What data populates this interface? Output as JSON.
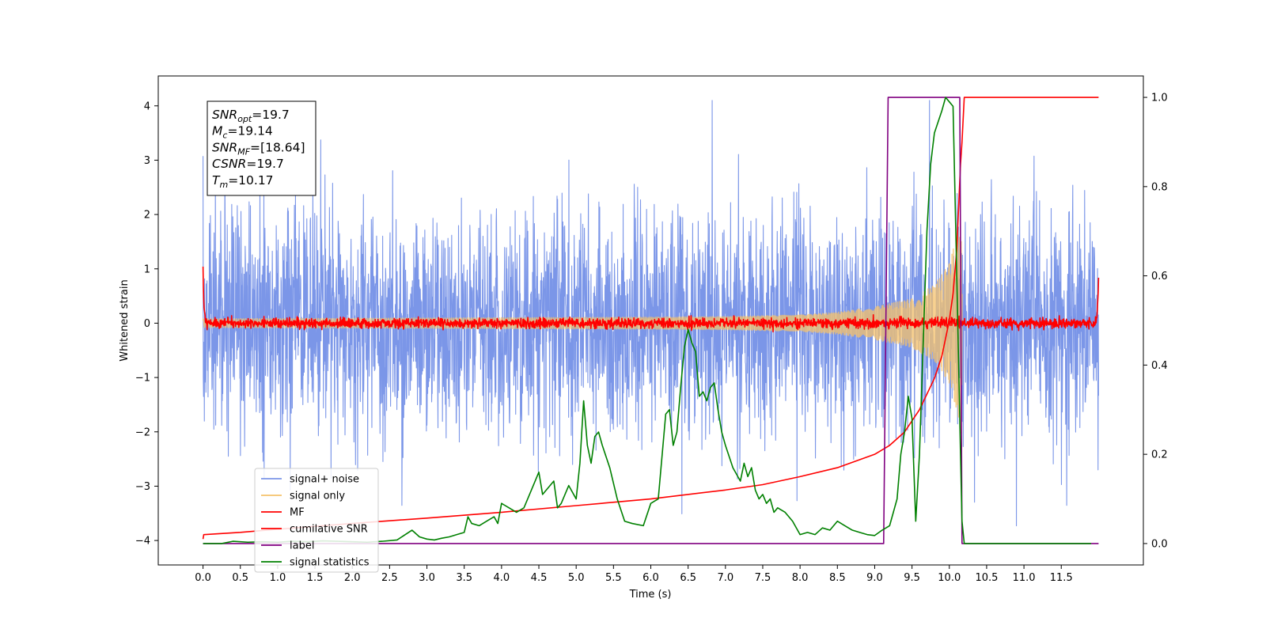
{
  "chart_data": {
    "type": "line",
    "xlabel": "Time (s)",
    "ylabel": "Whitened strain",
    "xlim": [
      -0.6,
      12.6
    ],
    "ylim": [
      -4.45,
      4.55
    ],
    "y2lim": [
      -0.048,
      1.048
    ],
    "x_ticks": [
      0.0,
      0.5,
      1.0,
      1.5,
      2.0,
      2.5,
      3.0,
      3.5,
      4.0,
      4.5,
      5.0,
      5.5,
      6.0,
      6.5,
      7.0,
      7.5,
      8.0,
      8.5,
      9.0,
      9.5,
      10.0,
      10.5,
      11.0,
      11.5
    ],
    "x_tick_labels": [
      "0.0",
      "0.5",
      "1.0",
      "1.5",
      "2.0",
      "2.5",
      "3.0",
      "3.5",
      "4.0",
      "4.5",
      "5.0",
      "5.5",
      "6.0",
      "6.5",
      "7.0",
      "7.5",
      "8.0",
      "8.5",
      "9.0",
      "9.5",
      "10.0",
      "10.5",
      "11.0",
      "11.5"
    ],
    "y_ticks": [
      -4,
      -3,
      -2,
      -1,
      0,
      1,
      2,
      3,
      4
    ],
    "y_tick_labels": [
      "−4",
      "−3",
      "−2",
      "−1",
      "0",
      "1",
      "2",
      "3",
      "4"
    ],
    "y2_ticks": [
      0.0,
      0.2,
      0.4,
      0.6,
      0.8,
      1.0
    ],
    "y2_tick_labels": [
      "0.0",
      "0.2",
      "0.4",
      "0.6",
      "0.8",
      "1.0"
    ],
    "grid": false,
    "legend_position": "lower-left",
    "annotation": {
      "lines": [
        {
          "sym": "SNR",
          "sub": "opt",
          "value": "=19.7"
        },
        {
          "sym": "M",
          "sub": "c",
          "value": "=19.14"
        },
        {
          "sym": "SNR",
          "sub": "MF",
          "value": "=[18.64]"
        },
        {
          "sym": "CSNR",
          "sub": "",
          "value": "=19.7"
        },
        {
          "sym": "T",
          "sub": "m",
          "value": "=10.17"
        }
      ]
    },
    "series": [
      {
        "name": "signal+ noise",
        "axis": "left",
        "color": "#7b96e8",
        "kind": "noise",
        "x_range": [
          0.0,
          12.0
        ],
        "std": 1.05,
        "y_range": [
          -3.9,
          4.1
        ]
      },
      {
        "name": "signal only",
        "axis": "left",
        "color": "#f5c26b",
        "kind": "chirp",
        "x_range": [
          0.0,
          10.17
        ],
        "envelope": {
          "x": [
            0.0,
            2.0,
            4.0,
            6.0,
            7.0,
            8.0,
            8.5,
            9.0,
            9.5,
            9.8,
            10.0,
            10.1,
            10.17
          ],
          "amp": [
            0.08,
            0.09,
            0.1,
            0.11,
            0.12,
            0.15,
            0.2,
            0.3,
            0.45,
            0.7,
            1.1,
            1.6,
            2.3
          ]
        }
      },
      {
        "name": "MF",
        "axis": "left",
        "color": "#ff0000",
        "kind": "mf",
        "x_range": [
          0.0,
          12.0
        ],
        "noise_std": 0.045,
        "start_value": 1.0,
        "end_value": 0.9
      },
      {
        "name": "cumilative SNR",
        "axis": "right",
        "color": "#ff0000",
        "kind": "line",
        "x": [
          0.0,
          0.01,
          0.5,
          1.0,
          2.0,
          3.0,
          4.0,
          5.0,
          6.0,
          7.0,
          7.5,
          8.0,
          8.5,
          9.0,
          9.2,
          9.4,
          9.6,
          9.8,
          9.9,
          10.0,
          10.05,
          10.1,
          10.15,
          10.17,
          10.2,
          12.0
        ],
        "y": [
          0.01,
          0.02,
          0.025,
          0.032,
          0.045,
          0.057,
          0.07,
          0.085,
          0.1,
          0.12,
          0.132,
          0.15,
          0.17,
          0.2,
          0.22,
          0.25,
          0.3,
          0.37,
          0.42,
          0.5,
          0.56,
          0.66,
          0.85,
          0.9,
          1.0,
          1.0
        ]
      },
      {
        "name": "label",
        "axis": "right",
        "color": "#800080",
        "kind": "line",
        "x": [
          0.0,
          9.12,
          9.18,
          10.14,
          10.17,
          12.0
        ],
        "y": [
          0.0,
          0.0,
          1.0,
          1.0,
          0.0,
          0.0
        ]
      },
      {
        "name": "signal statistics",
        "axis": "right",
        "color": "#008000",
        "kind": "line",
        "x": [
          0.0,
          0.25,
          0.4,
          0.6,
          0.8,
          1.0,
          1.2,
          1.4,
          1.6,
          1.8,
          2.0,
          2.2,
          2.4,
          2.6,
          2.8,
          2.9,
          3.0,
          3.1,
          3.2,
          3.3,
          3.4,
          3.5,
          3.55,
          3.6,
          3.7,
          3.8,
          3.9,
          3.95,
          4.0,
          4.1,
          4.2,
          4.3,
          4.4,
          4.5,
          4.55,
          4.6,
          4.7,
          4.75,
          4.8,
          4.9,
          5.0,
          5.05,
          5.1,
          5.15,
          5.2,
          5.25,
          5.3,
          5.35,
          5.45,
          5.55,
          5.65,
          5.75,
          5.9,
          6.0,
          6.05,
          6.1,
          6.2,
          6.25,
          6.3,
          6.35,
          6.4,
          6.45,
          6.5,
          6.55,
          6.6,
          6.65,
          6.7,
          6.75,
          6.8,
          6.85,
          6.9,
          6.95,
          7.0,
          7.1,
          7.2,
          7.25,
          7.3,
          7.35,
          7.4,
          7.45,
          7.5,
          7.55,
          7.6,
          7.65,
          7.7,
          7.8,
          7.9,
          8.0,
          8.1,
          8.2,
          8.3,
          8.4,
          8.5,
          8.6,
          8.7,
          8.8,
          8.9,
          9.0,
          9.1,
          9.2,
          9.3,
          9.35,
          9.4,
          9.45,
          9.5,
          9.55,
          9.6,
          9.65,
          9.7,
          9.75,
          9.8,
          9.9,
          9.95,
          10.0,
          10.05,
          10.1,
          10.15,
          10.17,
          10.2,
          10.3,
          11.0,
          11.5,
          11.9
        ],
        "y": [
          0.0,
          0.0,
          0.005,
          0.003,
          0.004,
          0.003,
          0.005,
          0.004,
          0.006,
          0.005,
          0.004,
          0.003,
          0.005,
          0.008,
          0.03,
          0.015,
          0.01,
          0.008,
          0.012,
          0.015,
          0.02,
          0.025,
          0.06,
          0.045,
          0.04,
          0.05,
          0.06,
          0.045,
          0.09,
          0.08,
          0.07,
          0.08,
          0.12,
          0.16,
          0.11,
          0.12,
          0.14,
          0.08,
          0.09,
          0.13,
          0.1,
          0.18,
          0.32,
          0.22,
          0.18,
          0.24,
          0.25,
          0.22,
          0.17,
          0.1,
          0.05,
          0.045,
          0.04,
          0.09,
          0.095,
          0.1,
          0.29,
          0.3,
          0.22,
          0.25,
          0.35,
          0.44,
          0.48,
          0.45,
          0.43,
          0.33,
          0.34,
          0.32,
          0.35,
          0.36,
          0.3,
          0.25,
          0.22,
          0.17,
          0.14,
          0.18,
          0.15,
          0.17,
          0.12,
          0.1,
          0.11,
          0.09,
          0.1,
          0.07,
          0.08,
          0.07,
          0.05,
          0.02,
          0.025,
          0.02,
          0.035,
          0.03,
          0.05,
          0.04,
          0.03,
          0.025,
          0.02,
          0.018,
          0.03,
          0.04,
          0.1,
          0.2,
          0.25,
          0.33,
          0.28,
          0.05,
          0.2,
          0.45,
          0.7,
          0.85,
          0.92,
          0.97,
          1.0,
          0.99,
          0.98,
          0.6,
          0.2,
          0.05,
          0.0,
          0.0,
          0.0,
          0.0,
          0.0
        ]
      }
    ]
  }
}
